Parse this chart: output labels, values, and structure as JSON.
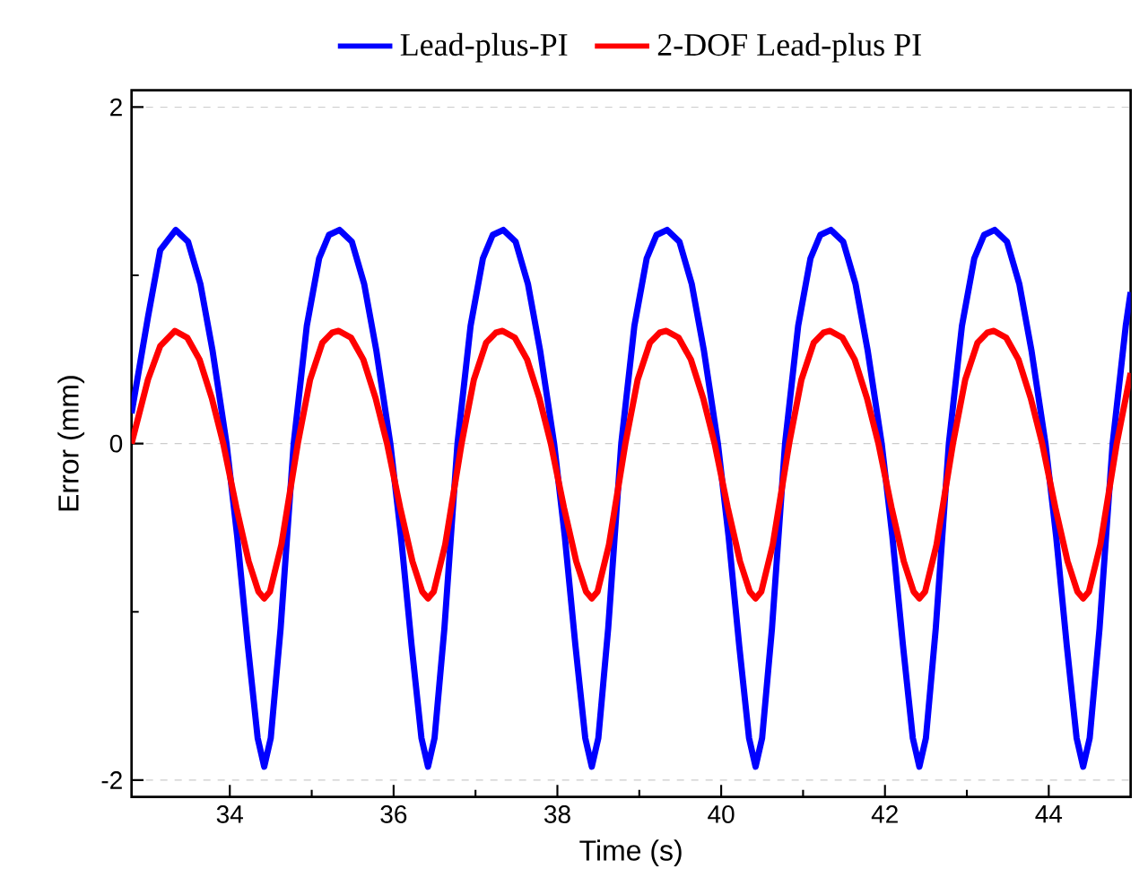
{
  "chart_data": {
    "type": "line",
    "xlabel": "Time (s)",
    "ylabel": "Error (mm)",
    "xlim": [
      32.8,
      45.0
    ],
    "ylim": [
      -2.1,
      2.1
    ],
    "xticks": [
      34,
      36,
      38,
      40,
      42,
      44
    ],
    "yticks": [
      -2,
      0,
      2
    ],
    "grid": "y",
    "legend": "top",
    "marker": "none",
    "line_style": "solid",
    "series": [
      {
        "name": "Lead-plus-PI",
        "color": "#0000ff",
        "x": [
          32.8,
          33.0,
          33.15,
          33.34,
          33.49,
          33.64,
          33.79,
          33.96,
          34.09,
          34.22,
          34.34,
          34.42,
          34.5,
          34.62,
          34.78,
          34.94,
          35.09,
          35.21,
          35.34,
          35.49,
          35.64,
          35.79,
          35.96,
          36.09,
          36.22,
          36.34,
          36.42,
          36.5,
          36.62,
          36.78,
          36.94,
          37.09,
          37.21,
          37.34,
          37.49,
          37.64,
          37.79,
          37.96,
          38.09,
          38.22,
          38.34,
          38.42,
          38.5,
          38.62,
          38.78,
          38.94,
          39.09,
          39.21,
          39.34,
          39.49,
          39.64,
          39.79,
          39.96,
          40.09,
          40.22,
          40.34,
          40.42,
          40.5,
          40.62,
          40.78,
          40.94,
          41.09,
          41.21,
          41.34,
          41.49,
          41.64,
          41.79,
          41.96,
          42.09,
          42.22,
          42.34,
          42.42,
          42.5,
          42.62,
          42.78,
          42.94,
          43.09,
          43.21,
          43.34,
          43.49,
          43.64,
          43.79,
          43.96,
          44.09,
          44.22,
          44.34,
          44.42,
          44.5,
          44.62,
          44.78,
          44.94,
          45.0
        ],
        "values": [
          0.18,
          0.75,
          1.15,
          1.27,
          1.2,
          0.95,
          0.55,
          0,
          -0.55,
          -1.2,
          -1.75,
          -1.92,
          -1.75,
          -1.1,
          0,
          0.7,
          1.1,
          1.24,
          1.27,
          1.2,
          0.95,
          0.55,
          0,
          -0.55,
          -1.2,
          -1.75,
          -1.92,
          -1.75,
          -1.1,
          0,
          0.7,
          1.1,
          1.24,
          1.27,
          1.2,
          0.95,
          0.55,
          0,
          -0.55,
          -1.2,
          -1.75,
          -1.92,
          -1.75,
          -1.1,
          0,
          0.7,
          1.1,
          1.24,
          1.27,
          1.2,
          0.95,
          0.55,
          0,
          -0.55,
          -1.2,
          -1.75,
          -1.92,
          -1.75,
          -1.1,
          0,
          0.7,
          1.1,
          1.24,
          1.27,
          1.2,
          0.95,
          0.55,
          0,
          -0.55,
          -1.2,
          -1.75,
          -1.92,
          -1.75,
          -1.1,
          0,
          0.7,
          1.1,
          1.24,
          1.27,
          1.2,
          0.95,
          0.55,
          0,
          -0.55,
          -1.2,
          -1.75,
          -1.92,
          -1.75,
          -1.1,
          0,
          0.7,
          0.9
        ]
      },
      {
        "name": "2-DOF Lead-plus PI",
        "color": "#ff0000",
        "x": [
          32.8,
          33.0,
          33.15,
          33.33,
          33.48,
          33.63,
          33.78,
          33.92,
          34.08,
          34.23,
          34.35,
          34.42,
          34.49,
          34.63,
          34.83,
          34.98,
          35.13,
          35.25,
          35.33,
          35.48,
          35.63,
          35.78,
          35.92,
          36.08,
          36.23,
          36.35,
          36.42,
          36.49,
          36.63,
          36.83,
          36.98,
          37.13,
          37.25,
          37.33,
          37.48,
          37.63,
          37.78,
          37.92,
          38.08,
          38.23,
          38.35,
          38.42,
          38.49,
          38.63,
          38.83,
          38.98,
          39.13,
          39.25,
          39.33,
          39.48,
          39.63,
          39.78,
          39.92,
          40.08,
          40.23,
          40.35,
          40.42,
          40.49,
          40.63,
          40.83,
          40.98,
          41.13,
          41.25,
          41.33,
          41.48,
          41.63,
          41.78,
          41.92,
          42.08,
          42.23,
          42.35,
          42.42,
          42.49,
          42.63,
          42.83,
          42.98,
          43.13,
          43.25,
          43.33,
          43.48,
          43.63,
          43.78,
          43.92,
          44.08,
          44.23,
          44.35,
          44.42,
          44.49,
          44.63,
          44.83,
          45.0
        ],
        "values": [
          0.0,
          0.38,
          0.58,
          0.67,
          0.63,
          0.5,
          0.27,
          0,
          -0.38,
          -0.7,
          -0.88,
          -0.92,
          -0.88,
          -0.6,
          0,
          0.38,
          0.6,
          0.66,
          0.67,
          0.63,
          0.5,
          0.27,
          0,
          -0.38,
          -0.7,
          -0.88,
          -0.92,
          -0.88,
          -0.6,
          0,
          0.38,
          0.6,
          0.66,
          0.67,
          0.63,
          0.5,
          0.27,
          0,
          -0.38,
          -0.7,
          -0.88,
          -0.92,
          -0.88,
          -0.6,
          0,
          0.38,
          0.6,
          0.66,
          0.67,
          0.63,
          0.5,
          0.27,
          0,
          -0.38,
          -0.7,
          -0.88,
          -0.92,
          -0.88,
          -0.6,
          0,
          0.38,
          0.6,
          0.66,
          0.67,
          0.63,
          0.5,
          0.27,
          0,
          -0.38,
          -0.7,
          -0.88,
          -0.92,
          -0.88,
          -0.6,
          0,
          0.38,
          0.6,
          0.66,
          0.67,
          0.63,
          0.5,
          0.27,
          0,
          -0.38,
          -0.7,
          -0.88,
          -0.92,
          -0.88,
          -0.6,
          0,
          0.42
        ]
      }
    ]
  }
}
